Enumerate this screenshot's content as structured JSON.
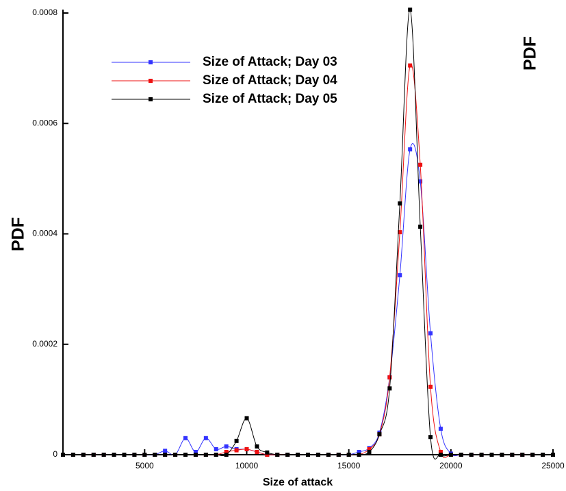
{
  "chart_data": {
    "type": "line",
    "xlabel": "Size of attack",
    "ylabel": "PDF",
    "annotation": "PDF",
    "x": [
      1000,
      1500,
      2000,
      2500,
      3000,
      3500,
      4000,
      4500,
      5000,
      5500,
      6000,
      6500,
      7000,
      7500,
      8000,
      8500,
      9000,
      9500,
      10000,
      10500,
      11000,
      11500,
      12000,
      12500,
      13000,
      13500,
      14000,
      14500,
      15000,
      15500,
      16000,
      16500,
      17000,
      17500,
      18000,
      18500,
      19000,
      19500,
      20000,
      20500,
      21000,
      21500,
      22000,
      22500,
      23000,
      23500,
      24000,
      24500,
      25000
    ],
    "series": [
      {
        "name": "Size of Attack; Day 03",
        "color": "#3333ff",
        "values": [
          0,
          0,
          0,
          0,
          0,
          0,
          0,
          0,
          0,
          0,
          7e-06,
          0,
          3e-05,
          5e-06,
          3e-05,
          1e-05,
          1.5e-05,
          1e-05,
          1e-05,
          5e-06,
          0,
          0,
          0,
          0,
          0,
          0,
          0,
          0,
          0,
          5e-06,
          1.2e-05,
          4e-05,
          0.00014,
          0.000325,
          0.000553,
          0.000495,
          0.00022,
          4.7e-05,
          2e-06,
          0,
          0,
          0,
          0,
          0,
          0,
          0,
          0,
          0,
          0
        ]
      },
      {
        "name": "Size of Attack; Day 04",
        "color": "#ee1111",
        "values": [
          0,
          0,
          0,
          0,
          0,
          0,
          0,
          0,
          0,
          0,
          0,
          0,
          0,
          0,
          0,
          0,
          5e-06,
          8e-06,
          1e-05,
          5e-06,
          0,
          0,
          0,
          0,
          0,
          0,
          0,
          0,
          0,
          0,
          1e-05,
          3.7e-05,
          0.00014,
          0.000403,
          0.000705,
          0.000525,
          0.000123,
          5e-06,
          0,
          0,
          0,
          0,
          0,
          0,
          0,
          0,
          0,
          0,
          0
        ]
      },
      {
        "name": "Size of Attack; Day 05",
        "color": "#000000",
        "values": [
          0,
          0,
          0,
          0,
          0,
          0,
          0,
          0,
          0,
          0,
          0,
          0,
          0,
          0,
          0,
          0,
          0,
          2.5e-05,
          6.6e-05,
          1.5e-05,
          4e-06,
          0,
          0,
          0,
          0,
          0,
          0,
          0,
          0,
          0,
          5e-06,
          3.7e-05,
          0.00012,
          0.000455,
          0.000806,
          0.000413,
          3.2e-05,
          0,
          0,
          0,
          0,
          0,
          0,
          0,
          0,
          0,
          0,
          0,
          0
        ]
      }
    ],
    "xlim": [
      1000,
      25000
    ],
    "xticks": [
      5000,
      10000,
      15000,
      20000,
      25000
    ],
    "ylim": [
      0,
      0.0008
    ],
    "yticks": [
      0,
      0.0002,
      0.0004,
      0.0006,
      0.0008
    ],
    "legend": "upper left"
  }
}
